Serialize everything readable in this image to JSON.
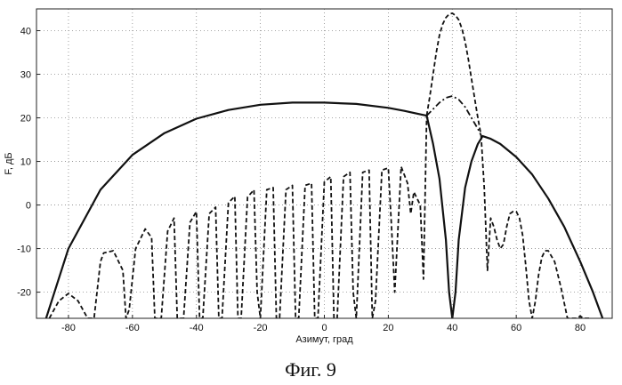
{
  "chart_data": {
    "type": "line",
    "xlabel": "Азимут, град",
    "ylabel": "F, дБ",
    "xlim": [
      -90,
      90
    ],
    "ylim": [
      -26,
      45
    ],
    "xticks": [
      -80,
      -60,
      -40,
      -20,
      0,
      20,
      40,
      60,
      80
    ],
    "yticks": [
      -20,
      -10,
      0,
      10,
      20,
      30,
      40
    ],
    "xtick_labels": [
      "-80",
      "-60",
      "-40",
      "-20",
      "0",
      "20",
      "40",
      "60",
      "80"
    ],
    "ytick_labels": [
      "-20",
      "-10",
      "0",
      "10",
      "20",
      "30",
      "40"
    ],
    "grid": true,
    "series": [
      {
        "style": "solid",
        "x": [
          -87,
          -80,
          -70,
          -60,
          -50,
          -40,
          -30,
          -20,
          -10,
          0,
          10,
          20,
          25,
          30,
          32,
          34,
          36,
          38,
          39,
          40,
          41,
          42,
          44,
          46,
          48,
          49.5,
          52,
          55,
          60,
          65,
          70,
          75,
          80,
          84,
          87
        ],
        "y": [
          -26,
          -10,
          3.5,
          11.5,
          16.5,
          19.8,
          21.8,
          23.0,
          23.5,
          23.5,
          23.2,
          22.3,
          21.6,
          20.8,
          20.5,
          14,
          6,
          -8,
          -20,
          -26,
          -20,
          -8,
          4,
          10,
          14,
          15.8,
          15.2,
          14,
          11,
          7,
          1.5,
          -5,
          -13,
          -20,
          -26
        ]
      },
      {
        "style": "dashed",
        "x": [
          32,
          33,
          34,
          35,
          36,
          37,
          38,
          39,
          40,
          41,
          42,
          43,
          44,
          45,
          46,
          47,
          48,
          49
        ],
        "y": [
          20.5,
          25,
          30,
          35,
          39,
          41.5,
          43,
          43.8,
          44,
          43.5,
          42.5,
          40.5,
          37.5,
          33.5,
          29,
          24.5,
          20,
          16
        ]
      },
      {
        "style": "dashdot",
        "x": [
          32,
          34,
          36,
          38,
          40,
          42,
          44,
          46,
          48,
          49
        ],
        "y": [
          20.5,
          22,
          23.5,
          24.6,
          25,
          24.2,
          22.5,
          20,
          17.5,
          16
        ]
      },
      {
        "style": "dashed",
        "x": [
          -86,
          -83,
          -80,
          -77,
          -74,
          -72,
          -70,
          -69,
          -66,
          -63,
          -62,
          -61,
          -59,
          -56,
          -54,
          -53,
          -51,
          -49,
          -47,
          -46,
          -44,
          -42,
          -40,
          -39,
          -38,
          -36,
          -34,
          -33,
          -32,
          -30,
          -28,
          -27,
          -26,
          -24,
          -22,
          -21,
          -20,
          -18,
          -16,
          -15,
          -14,
          -12,
          -10,
          -9,
          -8,
          -6,
          -4,
          -3,
          -2,
          0,
          2,
          3,
          4,
          6,
          8,
          9,
          10,
          12,
          14,
          15,
          16,
          18,
          20,
          21,
          22,
          24,
          26,
          27,
          28,
          30,
          31,
          32
        ],
        "y": [
          -26,
          -22,
          -20.3,
          -22,
          -26,
          -26,
          -13,
          -11,
          -10.5,
          -15,
          -26,
          -24,
          -10,
          -5.5,
          -7.5,
          -26,
          -26,
          -6,
          -3,
          -26,
          -26,
          -4,
          -1.5,
          -26,
          -26,
          -2,
          -0.5,
          -26,
          -26,
          0.5,
          2,
          -26,
          -26,
          1.8,
          3.5,
          -20,
          -26,
          3.5,
          4,
          -26,
          -26,
          3.5,
          4.5,
          -26,
          -26,
          4.5,
          5,
          -26,
          -26,
          5.3,
          6.5,
          -26,
          -26,
          6.5,
          7.5,
          -20,
          -26,
          7.5,
          8,
          -26,
          -22,
          8,
          8.5,
          -5,
          -20,
          8.8,
          5,
          -2,
          3,
          0,
          -17,
          20.5
        ]
      },
      {
        "style": "dashed",
        "x": [
          49,
          50,
          51,
          52,
          53,
          54,
          55,
          56,
          57,
          58,
          59,
          60,
          61,
          62,
          63,
          64,
          65,
          66,
          67,
          68,
          69,
          70,
          72,
          74,
          76,
          78,
          79,
          80,
          81,
          82,
          83
        ],
        "y": [
          16,
          4,
          -15,
          -3,
          -5,
          -8,
          -10,
          -9,
          -5,
          -2,
          -1.5,
          -1.5,
          -3,
          -7,
          -14,
          -22,
          -26,
          -22,
          -16,
          -12,
          -10.5,
          -10.5,
          -13,
          -19,
          -26,
          -26,
          -26,
          -25.5,
          -26,
          -26,
          -26
        ]
      }
    ],
    "caption": "Фиг. 9"
  }
}
